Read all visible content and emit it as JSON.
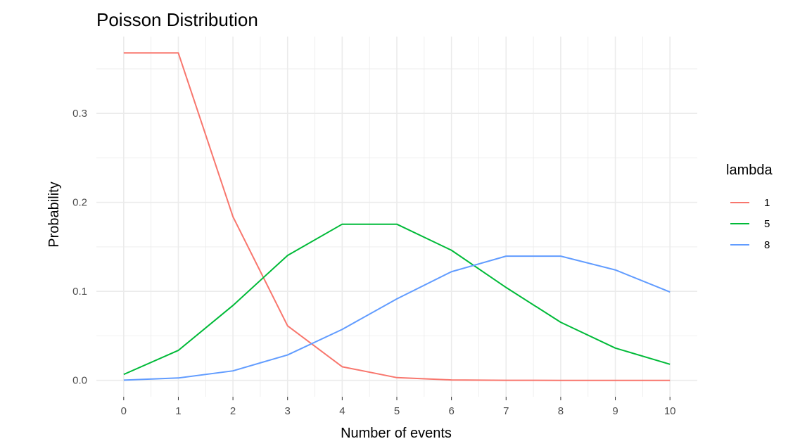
{
  "chart_data": {
    "type": "line",
    "title": "Poisson Distribution",
    "xlabel": "Number of events",
    "ylabel": "Probability",
    "x": [
      0,
      1,
      2,
      3,
      4,
      5,
      6,
      7,
      8,
      9,
      10
    ],
    "xlim": [
      -0.5,
      10.5
    ],
    "ylim": [
      -0.0184,
      0.3863
    ],
    "x_ticks": [
      0,
      1,
      2,
      3,
      4,
      5,
      6,
      7,
      8,
      9,
      10
    ],
    "y_ticks": [
      0.0,
      0.1,
      0.2,
      0.3
    ],
    "y_tick_labels": [
      "0.0",
      "0.1",
      "0.2",
      "0.3"
    ],
    "grid": true,
    "legend": {
      "title": "lambda",
      "position": "right"
    },
    "series": [
      {
        "name": "1",
        "color": "#F8766D",
        "values": [
          0.3679,
          0.3679,
          0.1839,
          0.0613,
          0.0153,
          0.0031,
          0.0005,
          0.0001,
          0.0,
          0.0,
          0.0
        ]
      },
      {
        "name": "5",
        "color": "#00BA38",
        "values": [
          0.0067,
          0.0337,
          0.0842,
          0.1404,
          0.1755,
          0.1755,
          0.1462,
          0.1044,
          0.0653,
          0.0363,
          0.0181
        ]
      },
      {
        "name": "8",
        "color": "#619CFF",
        "values": [
          0.0003,
          0.0027,
          0.0107,
          0.0286,
          0.0573,
          0.0916,
          0.1221,
          0.1396,
          0.1396,
          0.1241,
          0.0993
        ]
      }
    ]
  }
}
